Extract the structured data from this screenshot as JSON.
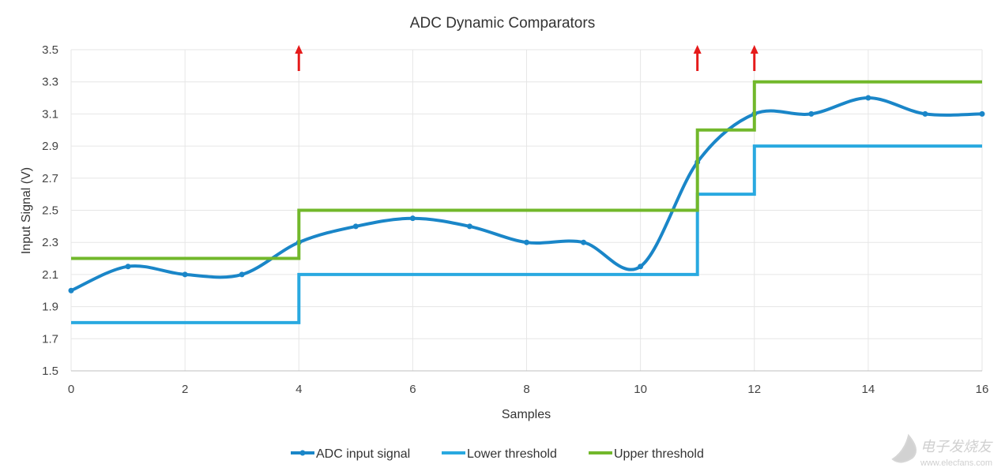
{
  "chart_data": {
    "type": "line",
    "title": "ADC Dynamic Comparators",
    "xlabel": "Samples",
    "ylabel": "Input Signal (V)",
    "xlim": [
      0,
      16
    ],
    "ylim": [
      1.5,
      3.5
    ],
    "xticks": [
      "0",
      "2",
      "4",
      "6",
      "8",
      "10",
      "12",
      "14",
      "16"
    ],
    "yticks": [
      "1.5",
      "1.7",
      "1.9",
      "2.1",
      "2.3",
      "2.5",
      "2.7",
      "2.9",
      "3.1",
      "3.3",
      "3.5"
    ],
    "grid": true,
    "legend_position": "bottom",
    "series": [
      {
        "name": "ADC input signal",
        "style": "smooth-markers",
        "color": "#1a86c8",
        "x": [
          0,
          1,
          2,
          3,
          4,
          5,
          6,
          7,
          8,
          9,
          10,
          11,
          12,
          13,
          14,
          15,
          16
        ],
        "values": [
          2.0,
          2.15,
          2.1,
          2.1,
          2.3,
          2.4,
          2.45,
          2.4,
          2.3,
          2.3,
          2.15,
          2.8,
          3.1,
          3.1,
          3.2,
          3.1,
          3.1
        ]
      },
      {
        "name": "Lower threshold",
        "style": "step",
        "color": "#29a9e0",
        "x": [
          0,
          4,
          4,
          11,
          11,
          12,
          12,
          16
        ],
        "values": [
          1.8,
          1.8,
          2.1,
          2.1,
          2.6,
          2.6,
          2.9,
          2.9
        ]
      },
      {
        "name": "Upper threshold",
        "style": "step",
        "color": "#72b82b",
        "x": [
          0,
          4,
          4,
          11,
          11,
          12,
          12,
          16
        ],
        "values": [
          2.2,
          2.2,
          2.5,
          2.5,
          3.0,
          3.0,
          3.3,
          3.3
        ]
      }
    ],
    "annotations": [
      {
        "type": "arrow-up",
        "x": 4,
        "color": "#e51b1b"
      },
      {
        "type": "arrow-up",
        "x": 11,
        "color": "#e51b1b"
      },
      {
        "type": "arrow-up",
        "x": 12,
        "color": "#e51b1b"
      }
    ]
  },
  "watermark": {
    "text": "电子发烧友",
    "url": "www.elecfans.com"
  }
}
